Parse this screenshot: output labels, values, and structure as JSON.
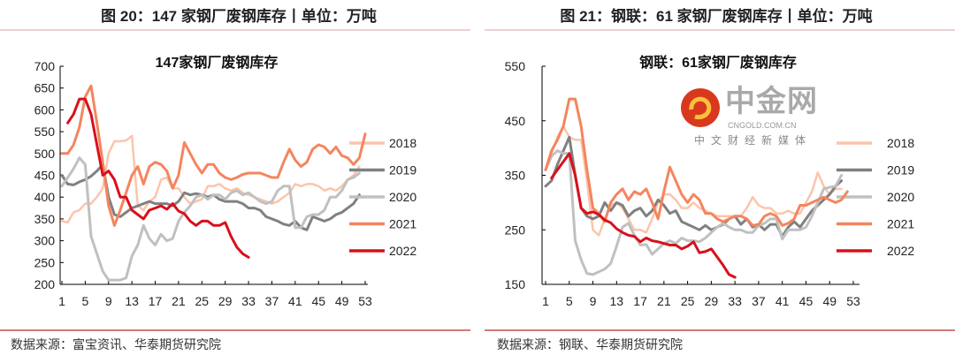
{
  "figures": [
    {
      "caption": "图 20：147 家钢厂废钢库存丨单位：万吨",
      "source": "数据来源：富宝资讯、华泰期货研究院"
    },
    {
      "caption": "图 21：钢联：61 家钢厂废钢库存丨单位：万吨",
      "source": "数据来源：钢联、华泰期货研究院"
    }
  ],
  "watermark": {
    "name": "中金网",
    "domain": "CNGOLD.COM.CN",
    "tagline": "中文财经新媒体"
  },
  "colors": {
    "2018": "#fbc5ab",
    "2019": "#808080",
    "2020": "#c0c0c0",
    "2021": "#f4855f",
    "2022": "#d8101c"
  },
  "chart_data": [
    {
      "type": "line",
      "title": "147家钢厂废钢库存",
      "xlabel": "",
      "ylabel": "",
      "ylim": [
        200,
        700
      ],
      "yticks": [
        200,
        250,
        300,
        350,
        400,
        450,
        500,
        550,
        600,
        650,
        700
      ],
      "xlim": [
        1,
        53
      ],
      "xticks": [
        1,
        5,
        9,
        13,
        17,
        21,
        25,
        29,
        33,
        37,
        41,
        45,
        49,
        53
      ],
      "legend": "right",
      "grid": false,
      "series": [
        {
          "name": "2018",
          "start": 1,
          "values": [
            345,
            342,
            365,
            370,
            385,
            385,
            400,
            420,
            500,
            528,
            528,
            530,
            540,
            380,
            370,
            390,
            400,
            440,
            445,
            420,
            420,
            400,
            385,
            390,
            395,
            425,
            425,
            430,
            420,
            415,
            420,
            410,
            405,
            400,
            395,
            390,
            385,
            390,
            400,
            410,
            430,
            425,
            430,
            430,
            425,
            415,
            420,
            415,
            425,
            440,
            450,
            470
          ]
        },
        {
          "name": "2019",
          "start": 1,
          "values": [
            450,
            430,
            428,
            435,
            440,
            448,
            460,
            475,
            400,
            360,
            355,
            365,
            375,
            380,
            385,
            390,
            385,
            385,
            385,
            380,
            390,
            410,
            405,
            408,
            405,
            400,
            405,
            395,
            390,
            390,
            390,
            385,
            375,
            375,
            370,
            355,
            350,
            345,
            338,
            335,
            345,
            330,
            325,
            355,
            350,
            345,
            350,
            360,
            365,
            375,
            385,
            405
          ]
        },
        {
          "name": "2020",
          "start": 1,
          "values": [
            425,
            445,
            465,
            490,
            475,
            310,
            270,
            230,
            210,
            210,
            210,
            215,
            265,
            290,
            335,
            305,
            290,
            315,
            300,
            305,
            345,
            365,
            380,
            400,
            405,
            395,
            405,
            405,
            395,
            410,
            415,
            405,
            410,
            400,
            390,
            385,
            390,
            415,
            425,
            425,
            330,
            330,
            355,
            360,
            360,
            370,
            400,
            400,
            415,
            440,
            445,
            455
          ]
        },
        {
          "name": "2021",
          "start": 1,
          "values": [
            500,
            500,
            520,
            560,
            630,
            655,
            570,
            480,
            380,
            335,
            370,
            410,
            450,
            470,
            430,
            470,
            480,
            475,
            460,
            420,
            450,
            525,
            500,
            475,
            455,
            475,
            475,
            455,
            445,
            440,
            445,
            452,
            455,
            455,
            455,
            450,
            445,
            445,
            480,
            510,
            485,
            470,
            480,
            510,
            520,
            515,
            500,
            515,
            495,
            490,
            475,
            490,
            545
          ]
        },
        {
          "name": "2022",
          "start": 2,
          "values": [
            570,
            590,
            625,
            625,
            590,
            520,
            450,
            460,
            440,
            400,
            400,
            370,
            360,
            350,
            370,
            375,
            380,
            372,
            385,
            368,
            362,
            345,
            335,
            345,
            345,
            335,
            335,
            342,
            310,
            285,
            270,
            262
          ]
        }
      ]
    },
    {
      "type": "line",
      "title": "钢联：61家钢厂废钢库存",
      "xlabel": "",
      "ylabel": "",
      "ylim": [
        150,
        550
      ],
      "yticks": [
        150,
        250,
        350,
        450,
        550
      ],
      "xlim": [
        1,
        53
      ],
      "xticks": [
        1,
        5,
        9,
        13,
        17,
        21,
        25,
        29,
        33,
        37,
        41,
        45,
        49,
        53
      ],
      "legend": "right",
      "grid": false,
      "series": [
        {
          "name": "2018",
          "start": 1,
          "values": [
            360,
            390,
            420,
            440,
            420,
            415,
            415,
            340,
            250,
            240,
            270,
            295,
            300,
            290,
            270,
            250,
            250,
            245,
            270,
            300,
            315,
            315,
            305,
            290,
            290,
            300,
            290,
            285,
            280,
            275,
            275,
            275,
            275,
            275,
            290,
            310,
            295,
            290,
            290,
            280,
            280,
            285,
            280,
            280,
            300,
            320,
            355,
            330,
            315,
            325,
            325
          ]
        },
        {
          "name": "2019",
          "start": 1,
          "values": [
            330,
            340,
            370,
            395,
            420,
            350,
            290,
            275,
            270,
            275,
            300,
            285,
            300,
            295,
            275,
            285,
            290,
            275,
            285,
            305,
            295,
            280,
            285,
            265,
            260,
            255,
            250,
            258,
            250,
            255,
            260,
            270,
            275,
            260,
            270,
            255,
            260,
            250,
            260,
            260,
            238,
            255,
            265,
            255,
            270,
            285,
            295,
            305,
            315,
            330,
            340
          ]
        },
        {
          "name": "2020",
          "start": 1,
          "values": [
            360,
            385,
            395,
            390,
            390,
            230,
            195,
            170,
            168,
            173,
            178,
            188,
            220,
            255,
            262,
            240,
            222,
            223,
            205,
            215,
            225,
            230,
            225,
            235,
            230,
            230,
            228,
            235,
            245,
            255,
            262,
            255,
            250,
            250,
            245,
            245,
            258,
            262,
            270,
            270,
            233,
            250,
            250,
            250,
            255,
            275,
            300,
            325,
            328,
            330,
            350
          ]
        },
        {
          "name": "2021",
          "start": 1,
          "values": [
            360,
            395,
            415,
            440,
            490,
            490,
            440,
            360,
            290,
            280,
            265,
            300,
            315,
            325,
            305,
            320,
            315,
            325,
            300,
            270,
            320,
            365,
            340,
            315,
            300,
            315,
            305,
            280,
            280,
            270,
            265,
            270,
            275,
            275,
            270,
            258,
            260,
            275,
            280,
            275,
            258,
            262,
            270,
            295,
            295,
            300,
            305,
            310,
            305,
            300,
            305,
            320
          ]
        },
        {
          "name": "2022",
          "start": 2,
          "values": [
            345,
            360,
            375,
            390,
            350,
            290,
            280,
            283,
            278,
            268,
            263,
            252,
            245,
            240,
            238,
            228,
            235,
            230,
            228,
            225,
            222,
            222,
            215,
            220,
            228,
            208,
            210,
            215,
            200,
            185,
            168,
            163
          ]
        }
      ]
    }
  ]
}
